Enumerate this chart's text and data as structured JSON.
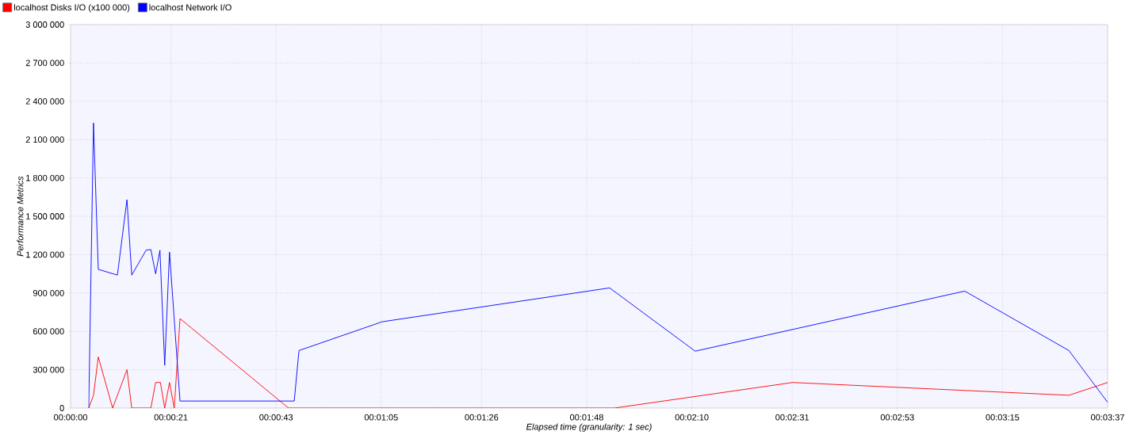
{
  "chart_data": {
    "type": "line",
    "xlabel": "Elapsed time (granularity: 1 sec)",
    "ylabel": "Performance Metrics",
    "grid": true,
    "legend": "top left",
    "marker": "none",
    "line_style": "solid",
    "xlim": [
      0,
      217
    ],
    "ylim": [
      0,
      3000000
    ],
    "xticks": [
      {
        "value": 0,
        "label": "00:00:00"
      },
      {
        "value": 21,
        "label": "00:00:21"
      },
      {
        "value": 43,
        "label": "00:00:43"
      },
      {
        "value": 65,
        "label": "00:01:05"
      },
      {
        "value": 86,
        "label": "00:01:26"
      },
      {
        "value": 108,
        "label": "00:01:48"
      },
      {
        "value": 130,
        "label": "00:02:10"
      },
      {
        "value": 151,
        "label": "00:02:31"
      },
      {
        "value": 173,
        "label": "00:02:53"
      },
      {
        "value": 195,
        "label": "00:03:15"
      },
      {
        "value": 217,
        "label": "00:03:37"
      }
    ],
    "yticks": [
      {
        "value": 0,
        "label": "0"
      },
      {
        "value": 300000,
        "label": "300 000"
      },
      {
        "value": 600000,
        "label": "600 000"
      },
      {
        "value": 900000,
        "label": "900 000"
      },
      {
        "value": 1200000,
        "label": "1 200 000"
      },
      {
        "value": 1500000,
        "label": "1 500 000"
      },
      {
        "value": 1800000,
        "label": "1 800 000"
      },
      {
        "value": 2100000,
        "label": "2 100 000"
      },
      {
        "value": 2400000,
        "label": "2 400 000"
      },
      {
        "value": 2700000,
        "label": "2 700 000"
      },
      {
        "value": 3000000,
        "label": "3 000 000"
      }
    ],
    "series": [
      {
        "name": "localhost Disks I/O (x100 000)",
        "color": "#ff0000",
        "x": [
          3.8,
          4.8,
          5.8,
          8.8,
          11.8,
          12.8,
          16.8,
          17.8,
          18.8,
          19.7,
          20.7,
          21.7,
          22.9,
          45.6,
          113.8,
          151.1,
          208.9,
          217
        ],
        "values": [
          0,
          100000,
          400000,
          0,
          300000,
          0,
          0,
          200000,
          200000,
          0,
          200000,
          0,
          700000,
          0,
          0,
          200000,
          100000,
          200000
        ]
      },
      {
        "name": "localhost Network I/O",
        "color": "#0000ff",
        "x": [
          3.8,
          4.8,
          5.8,
          9.8,
          11.8,
          12.8,
          15.8,
          16.8,
          17.8,
          18.7,
          19.7,
          20.7,
          22.9,
          46.8,
          47.8,
          65.2,
          112.8,
          130.7,
          187.1,
          208.9,
          217
        ],
        "values": [
          0,
          2230000,
          1085000,
          1040000,
          1630000,
          1040000,
          1235000,
          1240000,
          1050000,
          1235000,
          335000,
          1220000,
          55000,
          55000,
          450000,
          675000,
          940000,
          445000,
          915000,
          450000,
          45000
        ]
      }
    ]
  }
}
